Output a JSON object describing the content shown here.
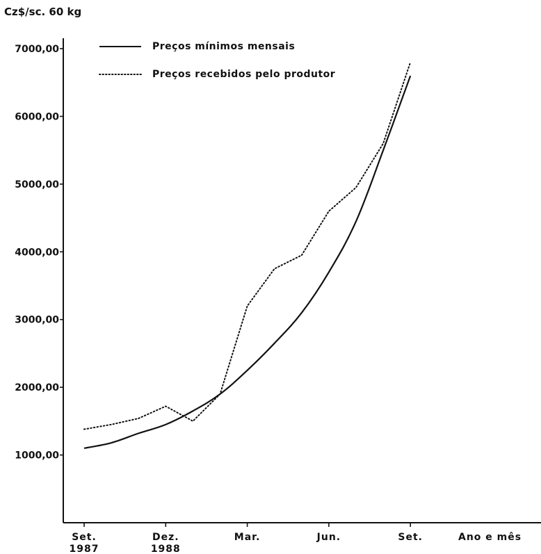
{
  "chart_data": {
    "type": "line",
    "y_axis_label": "Cz$/sc. 60 kg",
    "x_axis_label": "Ano e mês",
    "ylim": [
      0,
      7000
    ],
    "y_ticks": [
      {
        "value": 1000,
        "label": "1000,00"
      },
      {
        "value": 2000,
        "label": "2000,00"
      },
      {
        "value": 3000,
        "label": "3000,00"
      },
      {
        "value": 4000,
        "label": "4000,00"
      },
      {
        "value": 5000,
        "label": "5000,00"
      },
      {
        "value": 6000,
        "label": "6000,00"
      },
      {
        "value": 7000,
        "label": "7000,00"
      }
    ],
    "x_ticks": [
      {
        "index": 0,
        "label": "Set.",
        "sublabel": "1987"
      },
      {
        "index": 3,
        "label": "Dez.",
        "sublabel": "1988"
      },
      {
        "index": 6,
        "label": "Mar.",
        "sublabel": ""
      },
      {
        "index": 9,
        "label": "Jun.",
        "sublabel": ""
      },
      {
        "index": 12,
        "label": "Set.",
        "sublabel": ""
      }
    ],
    "x": [
      0,
      1,
      2,
      3,
      4,
      5,
      6,
      7,
      8,
      9,
      10,
      11,
      12
    ],
    "series": [
      {
        "name": "Preços mínimos mensais",
        "style": "solid",
        "values": [
          1100,
          1180,
          1320,
          1450,
          1650,
          1900,
          2250,
          2650,
          3100,
          3700,
          4450,
          5500,
          6600
        ]
      },
      {
        "name": "Preços recebidos pelo produtor",
        "style": "dotted",
        "values": [
          1380,
          1450,
          1540,
          1720,
          1500,
          1900,
          3200,
          3750,
          3950,
          4600,
          4950,
          5600,
          6800
        ]
      }
    ],
    "legend": {
      "position": "top-left"
    },
    "grid": false
  }
}
